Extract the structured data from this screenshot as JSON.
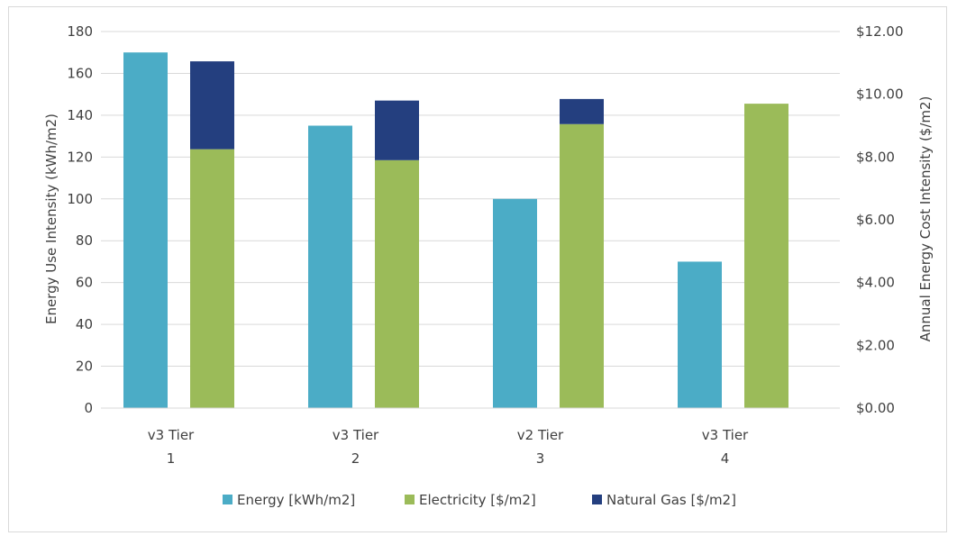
{
  "chart_data": {
    "type": "bar",
    "categories": [
      [
        "v3 Tier",
        "1"
      ],
      [
        "v3 Tier",
        "2"
      ],
      [
        "v2 Tier",
        "3"
      ],
      [
        "v3 Tier",
        "4"
      ]
    ],
    "series": [
      {
        "name": "Energy [kWh/m2]",
        "axis": "left",
        "color": "#4BACC6",
        "values": [
          170,
          135,
          100,
          70
        ]
      },
      {
        "name": "Electricity [$/m2]",
        "axis": "right",
        "color": "#9BBB59",
        "stack": "cost",
        "values": [
          8.25,
          7.9,
          9.05,
          9.7
        ]
      },
      {
        "name": "Natural Gas [$/m2]",
        "axis": "right",
        "color": "#243F7F",
        "stack": "cost",
        "values": [
          2.8,
          1.9,
          0.8,
          0
        ]
      }
    ],
    "ylabel": "Energy Use Intensity (kWh/m2)",
    "ylim": [
      0,
      180
    ],
    "yticks": [
      "0",
      "20",
      "40",
      "60",
      "80",
      "100",
      "120",
      "140",
      "160",
      "180"
    ],
    "y2label": "Annual Energy Cost Intensity ($/m2)",
    "y2lim": [
      0,
      12
    ],
    "y2ticks": [
      "$0.00",
      "$2.00",
      "$4.00",
      "$6.00",
      "$8.00",
      "$10.00",
      "$12.00"
    ],
    "grid": true,
    "legend_position": "bottom"
  }
}
